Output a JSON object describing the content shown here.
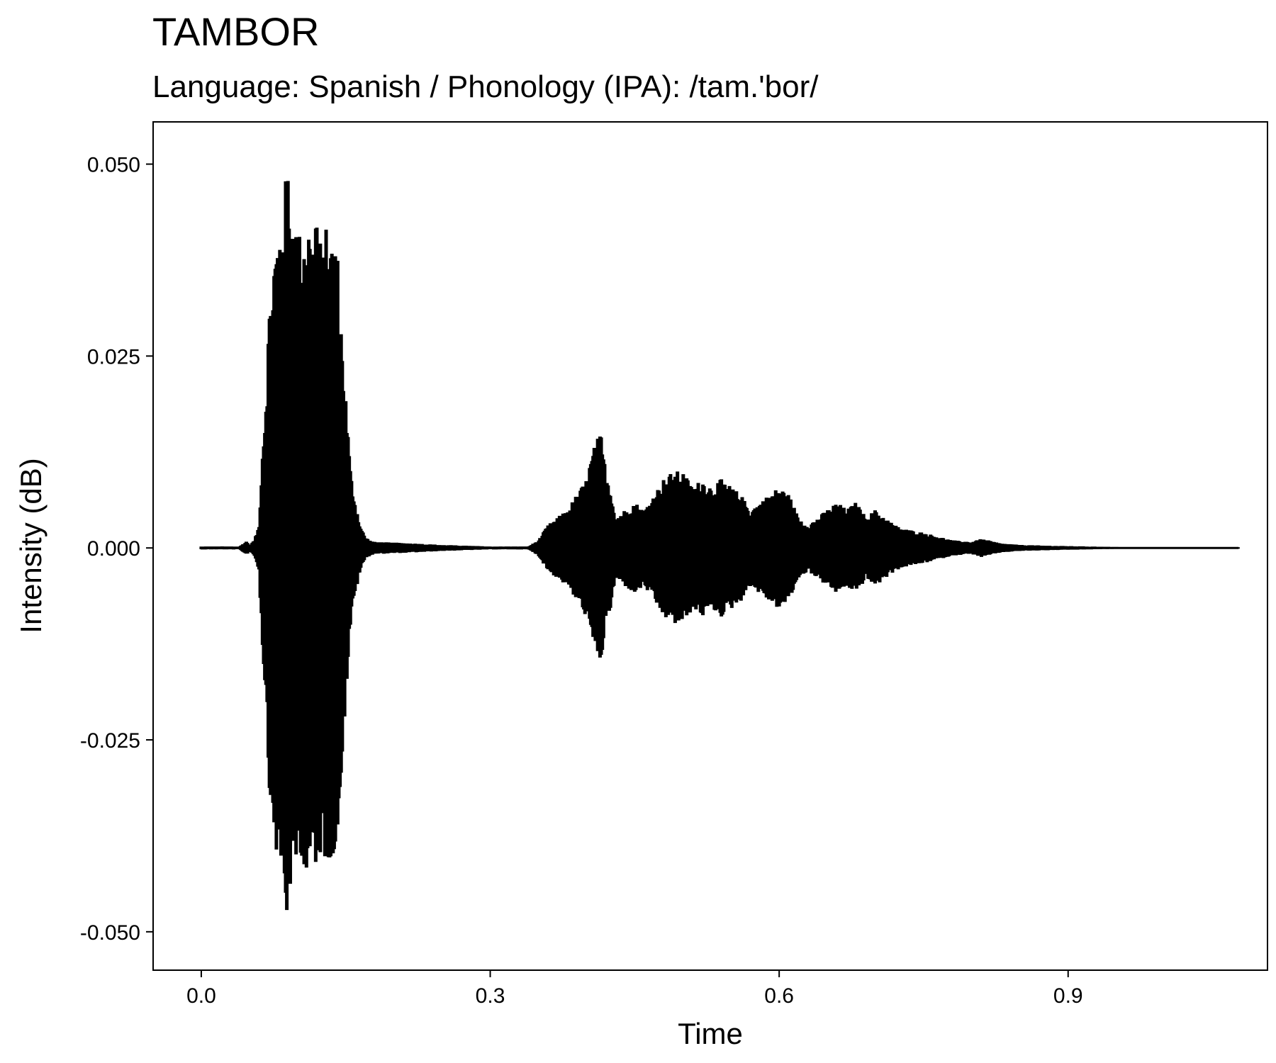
{
  "chart_data": {
    "type": "line",
    "title": "TAMBOR",
    "subtitle": "Language: Spanish / Phonology (IPA): /tam.'bor/",
    "xlabel": "Time",
    "ylabel": "Intensity (dB)",
    "xlim": [
      -0.05,
      1.107
    ],
    "ylim": [
      -0.055,
      0.0555
    ],
    "x_ticks": [
      0.0,
      0.3,
      0.6,
      0.9
    ],
    "x_tick_labels": [
      "0.0",
      "0.3",
      "0.6",
      "0.9"
    ],
    "y_ticks": [
      0.05,
      0.025,
      0.0,
      -0.025,
      -0.05
    ],
    "y_tick_labels": [
      "0.050",
      "0.025",
      "0.000",
      "-0.025",
      "-0.050"
    ],
    "grid": false,
    "line_color": "#000000",
    "series": [
      {
        "envelope_time": [
          0.0,
          0.04,
          0.047,
          0.05,
          0.055,
          0.06,
          0.063,
          0.068,
          0.07,
          0.075,
          0.078,
          0.082,
          0.085,
          0.09,
          0.092,
          0.095,
          0.1,
          0.105,
          0.11,
          0.115,
          0.12,
          0.125,
          0.13,
          0.135,
          0.14,
          0.145,
          0.15,
          0.155,
          0.16,
          0.165,
          0.17,
          0.175,
          0.18,
          0.2,
          0.22,
          0.25,
          0.3,
          0.34,
          0.35,
          0.36,
          0.37,
          0.38,
          0.39,
          0.4,
          0.405,
          0.41,
          0.415,
          0.42,
          0.425,
          0.43,
          0.44,
          0.45,
          0.46,
          0.47,
          0.48,
          0.49,
          0.5,
          0.51,
          0.52,
          0.53,
          0.54,
          0.55,
          0.56,
          0.57,
          0.58,
          0.59,
          0.6,
          0.61,
          0.62,
          0.63,
          0.64,
          0.65,
          0.66,
          0.67,
          0.68,
          0.69,
          0.7,
          0.71,
          0.72,
          0.73,
          0.75,
          0.78,
          0.8,
          0.81,
          0.82,
          0.83,
          0.85,
          0.88,
          0.92,
          0.96,
          1.0,
          1.077
        ],
        "envelope_amplitude": [
          0.0002,
          0.0002,
          0.0009,
          0.0004,
          0.001,
          0.003,
          0.012,
          0.022,
          0.03,
          0.038,
          0.04,
          0.042,
          0.046,
          0.05,
          0.045,
          0.044,
          0.042,
          0.04,
          0.044,
          0.04,
          0.046,
          0.038,
          0.042,
          0.04,
          0.042,
          0.03,
          0.02,
          0.01,
          0.006,
          0.003,
          0.0015,
          0.001,
          0.0008,
          0.0007,
          0.0006,
          0.0004,
          0.0002,
          0.0002,
          0.001,
          0.003,
          0.004,
          0.005,
          0.007,
          0.009,
          0.012,
          0.014,
          0.015,
          0.01,
          0.008,
          0.004,
          0.005,
          0.006,
          0.005,
          0.007,
          0.009,
          0.01,
          0.01,
          0.008,
          0.009,
          0.008,
          0.009,
          0.008,
          0.007,
          0.005,
          0.006,
          0.007,
          0.008,
          0.007,
          0.004,
          0.003,
          0.004,
          0.005,
          0.006,
          0.005,
          0.006,
          0.004,
          0.005,
          0.004,
          0.003,
          0.0025,
          0.002,
          0.001,
          0.0008,
          0.0012,
          0.0009,
          0.0006,
          0.0004,
          0.0003,
          0.0002,
          0.0001,
          0.0001,
          0.0001
        ]
      }
    ]
  }
}
